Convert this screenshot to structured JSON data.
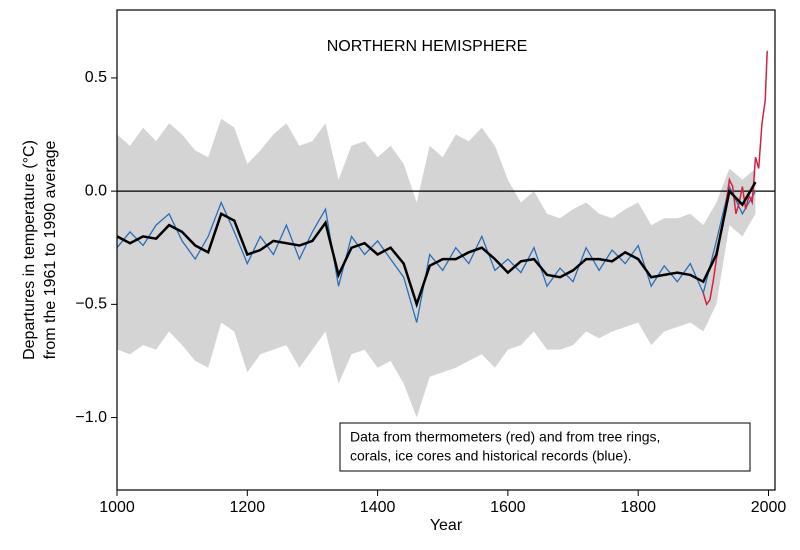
{
  "chart_data": {
    "type": "line",
    "title": "NORTHERN HEMISPHERE",
    "ylabel": [
      "Departures in temperature (°C)",
      "from the 1961 to 1990 average"
    ],
    "xlabel": "Year",
    "annotation": [
      "Data from thermometers (red) and from tree rings,",
      "corals, ice cores and historical records (blue)."
    ],
    "xlim": [
      1000,
      2010
    ],
    "ylim": [
      -1.32,
      0.8
    ],
    "xticks": [
      1000,
      1200,
      1400,
      1600,
      1800,
      2000
    ],
    "yticks": [
      0.5,
      {
        "value": 0,
        "label": "0.0"
      },
      {
        "value": -0.5,
        "label": "−0.5"
      },
      {
        "value": -1.0,
        "label": "−1.0"
      }
    ],
    "hline": 0,
    "grid": false,
    "x": [
      1000,
      1020,
      1040,
      1060,
      1080,
      1100,
      1120,
      1140,
      1160,
      1180,
      1200,
      1220,
      1240,
      1260,
      1280,
      1300,
      1320,
      1340,
      1360,
      1380,
      1400,
      1420,
      1440,
      1460,
      1480,
      1500,
      1520,
      1540,
      1560,
      1580,
      1600,
      1620,
      1640,
      1660,
      1680,
      1700,
      1720,
      1740,
      1760,
      1780,
      1800,
      1820,
      1840,
      1860,
      1880,
      1900,
      1920,
      1940,
      1960,
      1980
    ],
    "band": {
      "color": "#d4d4d4",
      "upper": [
        0.25,
        0.2,
        0.28,
        0.22,
        0.3,
        0.25,
        0.18,
        0.15,
        0.32,
        0.28,
        0.12,
        0.18,
        0.25,
        0.3,
        0.2,
        0.22,
        0.3,
        0.05,
        0.2,
        0.22,
        0.15,
        0.2,
        0.12,
        -0.05,
        0.2,
        0.15,
        0.25,
        0.22,
        0.28,
        0.2,
        0.05,
        -0.05,
        0.0,
        -0.1,
        -0.12,
        -0.08,
        -0.05,
        -0.1,
        -0.12,
        -0.08,
        -0.05,
        -0.15,
        -0.12,
        -0.12,
        -0.1,
        -0.15,
        -0.05,
        0.1,
        0.05,
        0.1
      ],
      "lower": [
        -0.7,
        -0.72,
        -0.68,
        -0.7,
        -0.62,
        -0.68,
        -0.75,
        -0.78,
        -0.58,
        -0.62,
        -0.8,
        -0.72,
        -0.7,
        -0.68,
        -0.78,
        -0.7,
        -0.62,
        -0.85,
        -0.72,
        -0.7,
        -0.78,
        -0.75,
        -0.85,
        -1.0,
        -0.82,
        -0.8,
        -0.78,
        -0.75,
        -0.72,
        -0.78,
        -0.7,
        -0.68,
        -0.62,
        -0.7,
        -0.7,
        -0.68,
        -0.62,
        -0.65,
        -0.62,
        -0.6,
        -0.58,
        -0.68,
        -0.62,
        -0.6,
        -0.58,
        -0.62,
        -0.5,
        -0.15,
        -0.2,
        -0.1
      ]
    },
    "proxy": {
      "color": "#2a6fb8",
      "values": [
        -0.25,
        -0.18,
        -0.24,
        -0.15,
        -0.1,
        -0.22,
        -0.3,
        -0.2,
        -0.05,
        -0.18,
        -0.32,
        -0.2,
        -0.28,
        -0.15,
        -0.3,
        -0.18,
        -0.08,
        -0.42,
        -0.2,
        -0.28,
        -0.22,
        -0.3,
        -0.38,
        -0.58,
        -0.28,
        -0.35,
        -0.25,
        -0.32,
        -0.2,
        -0.35,
        -0.3,
        -0.36,
        -0.25,
        -0.42,
        -0.34,
        -0.4,
        -0.25,
        -0.35,
        -0.26,
        -0.32,
        -0.24,
        -0.42,
        -0.33,
        -0.4,
        -0.32,
        -0.45,
        -0.22,
        0.02,
        -0.1,
        0.0
      ]
    },
    "smoothed": {
      "color": "#000000",
      "values": [
        -0.2,
        -0.23,
        -0.2,
        -0.21,
        -0.15,
        -0.18,
        -0.24,
        -0.27,
        -0.1,
        -0.13,
        -0.28,
        -0.26,
        -0.22,
        -0.23,
        -0.24,
        -0.22,
        -0.14,
        -0.37,
        -0.25,
        -0.23,
        -0.28,
        -0.25,
        -0.32,
        -0.5,
        -0.33,
        -0.3,
        -0.3,
        -0.27,
        -0.25,
        -0.3,
        -0.36,
        -0.31,
        -0.3,
        -0.37,
        -0.38,
        -0.35,
        -0.3,
        -0.3,
        -0.31,
        -0.27,
        -0.3,
        -0.38,
        -0.37,
        -0.36,
        -0.37,
        -0.4,
        -0.28,
        0.0,
        -0.06,
        0.04
      ]
    },
    "instrumental": {
      "color": "#d6203f",
      "x": [
        1900,
        1905,
        1910,
        1915,
        1920,
        1925,
        1930,
        1935,
        1940,
        1945,
        1950,
        1955,
        1960,
        1965,
        1970,
        1975,
        1980,
        1985,
        1990,
        1995,
        1998
      ],
      "values": [
        -0.45,
        -0.5,
        -0.48,
        -0.4,
        -0.3,
        -0.22,
        -0.15,
        -0.05,
        0.05,
        0.02,
        -0.1,
        -0.05,
        0.02,
        -0.08,
        -0.02,
        -0.05,
        0.15,
        0.1,
        0.3,
        0.4,
        0.62
      ]
    }
  }
}
